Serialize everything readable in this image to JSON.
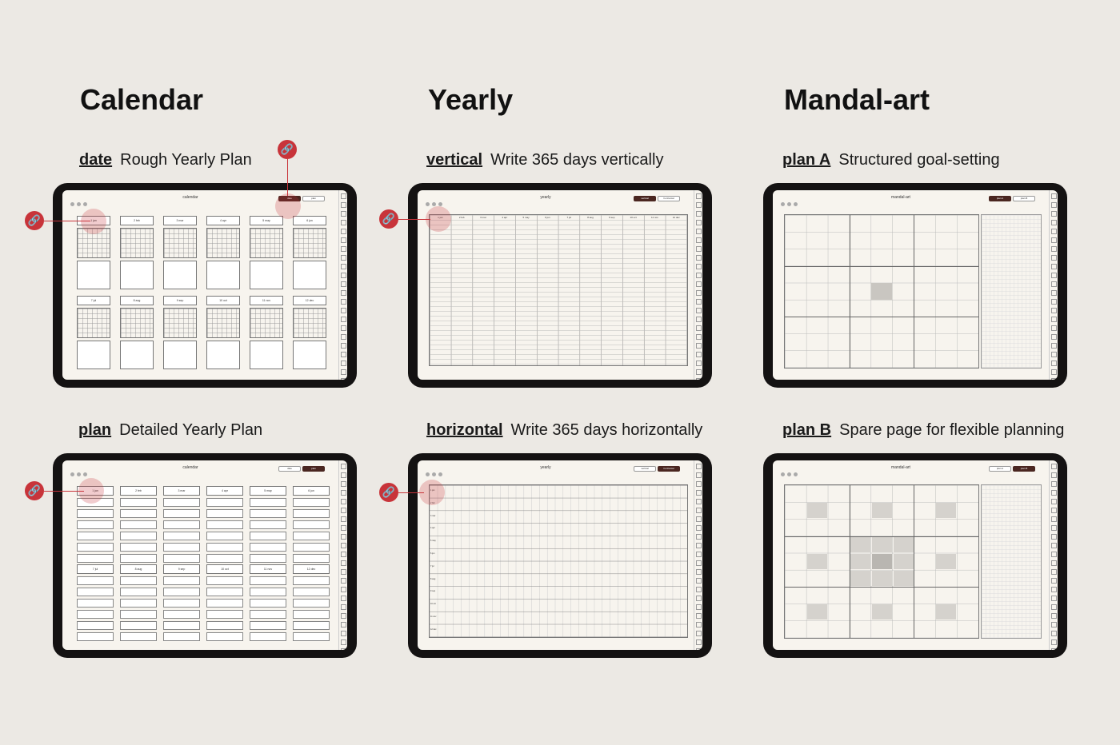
{
  "columns": [
    {
      "title": "Calendar"
    },
    {
      "title": "Yearly"
    },
    {
      "title": "Mandal-art"
    }
  ],
  "panels": [
    {
      "key": "date",
      "desc": "Rough Yearly Plan",
      "screen_title": "calendar",
      "pills": [
        "date",
        "plan"
      ],
      "active": 0
    },
    {
      "key": "vertical",
      "desc": "Write 365 days vertically",
      "screen_title": "yearly",
      "pills": [
        "vertical",
        "horizontal"
      ],
      "active": 0
    },
    {
      "key": "plan A",
      "desc": "Structured goal-setting",
      "screen_title": "mandal-art",
      "pills": [
        "plan A",
        "plan B"
      ],
      "active": 0
    },
    {
      "key": "plan",
      "desc": "Detailed Yearly Plan",
      "screen_title": "calendar",
      "pills": [
        "date",
        "plan"
      ],
      "active": 1
    },
    {
      "key": "horizontal",
      "desc": "Write 365 days horizontally",
      "screen_title": "yearly",
      "pills": [
        "vertical",
        "horizontal"
      ],
      "active": 1
    },
    {
      "key": "plan B",
      "desc": "Spare page for flexible planning",
      "screen_title": "mandal-art",
      "pills": [
        "plan A",
        "plan B"
      ],
      "active": 1
    }
  ],
  "months": [
    "1 jan",
    "2 feb",
    "3 mar",
    "4 apr",
    "5 may",
    "6 jun",
    "7 jul",
    "8 aug",
    "9 sep",
    "10 oct",
    "11 nov",
    "12 dec"
  ],
  "link_icon": "link-icon",
  "accent_color": "#c8343a",
  "active_pill_color": "#4a2620"
}
